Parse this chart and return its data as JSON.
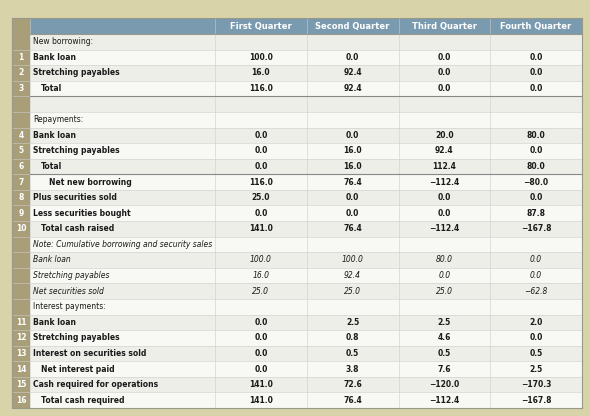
{
  "header_cols": [
    "First Quarter",
    "Second Quarter",
    "Third Quarter",
    "Fourth Quarter"
  ],
  "header_bg": "#7a9ab0",
  "header_fg": "#ffffff",
  "left_col_bg": "#a89e78",
  "left_col_fg": "#ffffff",
  "bg_color": "#d8d3a8",
  "row_bg_even": "#eeeee8",
  "row_bg_odd": "#f8f8f4",
  "grid_color": "#cccccc",
  "rows": [
    {
      "label": "New borrowing:",
      "values": [
        "",
        "",
        "",
        ""
      ],
      "row_num": "",
      "italic": false,
      "indent": 0,
      "section_header": true
    },
    {
      "label": "Bank loan",
      "values": [
        "100.0",
        "0.0",
        "0.0",
        "0.0"
      ],
      "row_num": "1",
      "italic": false,
      "indent": 0,
      "section_header": false
    },
    {
      "label": "Stretching payables",
      "values": [
        "16.0",
        "92.4",
        "0.0",
        "0.0"
      ],
      "row_num": "2",
      "italic": false,
      "indent": 0,
      "section_header": false
    },
    {
      "label": "Total",
      "values": [
        "116.0",
        "92.4",
        "0.0",
        "0.0"
      ],
      "row_num": "3",
      "italic": false,
      "indent": 1,
      "section_header": false
    },
    {
      "label": "",
      "values": [
        "",
        "",
        "",
        ""
      ],
      "row_num": "",
      "italic": false,
      "indent": 0,
      "section_header": false
    },
    {
      "label": "Repayments:",
      "values": [
        "",
        "",
        "",
        ""
      ],
      "row_num": "",
      "italic": false,
      "indent": 0,
      "section_header": true
    },
    {
      "label": "Bank loan",
      "values": [
        "0.0",
        "0.0",
        "20.0",
        "80.0"
      ],
      "row_num": "4",
      "italic": false,
      "indent": 0,
      "section_header": false
    },
    {
      "label": "Stretching payables",
      "values": [
        "0.0",
        "16.0",
        "92.4",
        "0.0"
      ],
      "row_num": "5",
      "italic": false,
      "indent": 0,
      "section_header": false
    },
    {
      "label": "Total",
      "values": [
        "0.0",
        "16.0",
        "112.4",
        "80.0"
      ],
      "row_num": "6",
      "italic": false,
      "indent": 1,
      "section_header": false
    },
    {
      "label": "Net new borrowing",
      "values": [
        "116.0",
        "76.4",
        "−112.4",
        "−80.0"
      ],
      "row_num": "7",
      "italic": false,
      "indent": 2,
      "section_header": false
    },
    {
      "label": "Plus securities sold",
      "values": [
        "25.0",
        "0.0",
        "0.0",
        "0.0"
      ],
      "row_num": "8",
      "italic": false,
      "indent": 0,
      "section_header": false
    },
    {
      "label": "Less securities bought",
      "values": [
        "0.0",
        "0.0",
        "0.0",
        "87.8"
      ],
      "row_num": "9",
      "italic": false,
      "indent": 0,
      "section_header": false
    },
    {
      "label": "Total cash raised",
      "values": [
        "141.0",
        "76.4",
        "−112.4",
        "−167.8"
      ],
      "row_num": "10",
      "italic": false,
      "indent": 1,
      "section_header": false
    },
    {
      "label": "Note: Cumulative borrowing and security sales",
      "values": [
        "",
        "",
        "",
        ""
      ],
      "row_num": "",
      "italic": true,
      "indent": 0,
      "section_header": false
    },
    {
      "label": "Bank loan",
      "values": [
        "100.0",
        "100.0",
        "80.0",
        "0.0"
      ],
      "row_num": "",
      "italic": true,
      "indent": 0,
      "section_header": false
    },
    {
      "label": "Stretching payables",
      "values": [
        "16.0",
        "92.4",
        "0.0",
        "0.0"
      ],
      "row_num": "",
      "italic": true,
      "indent": 0,
      "section_header": false
    },
    {
      "label": "Net securities sold",
      "values": [
        "25.0",
        "25.0",
        "25.0",
        "−62.8"
      ],
      "row_num": "",
      "italic": true,
      "indent": 0,
      "section_header": false
    },
    {
      "label": "Interest payments:",
      "values": [
        "",
        "",
        "",
        ""
      ],
      "row_num": "",
      "italic": false,
      "indent": 0,
      "section_header": true
    },
    {
      "label": "Bank loan",
      "values": [
        "0.0",
        "2.5",
        "2.5",
        "2.0"
      ],
      "row_num": "11",
      "italic": false,
      "indent": 0,
      "section_header": false
    },
    {
      "label": "Stretching payables",
      "values": [
        "0.0",
        "0.8",
        "4.6",
        "0.0"
      ],
      "row_num": "12",
      "italic": false,
      "indent": 0,
      "section_header": false
    },
    {
      "label": "Interest on securities sold",
      "values": [
        "0.0",
        "0.5",
        "0.5",
        "0.5"
      ],
      "row_num": "13",
      "italic": false,
      "indent": 0,
      "section_header": false
    },
    {
      "label": "Net interest paid",
      "values": [
        "0.0",
        "3.8",
        "7.6",
        "2.5"
      ],
      "row_num": "14",
      "italic": false,
      "indent": 1,
      "section_header": false
    },
    {
      "label": "Cash required for operations",
      "values": [
        "141.0",
        "72.6",
        "−120.0",
        "−170.3"
      ],
      "row_num": "15",
      "italic": false,
      "indent": 0,
      "section_header": false
    },
    {
      "label": "Total cash required",
      "values": [
        "141.0",
        "76.4",
        "−112.4",
        "−167.8"
      ],
      "row_num": "16",
      "italic": false,
      "indent": 1,
      "section_header": false
    }
  ]
}
